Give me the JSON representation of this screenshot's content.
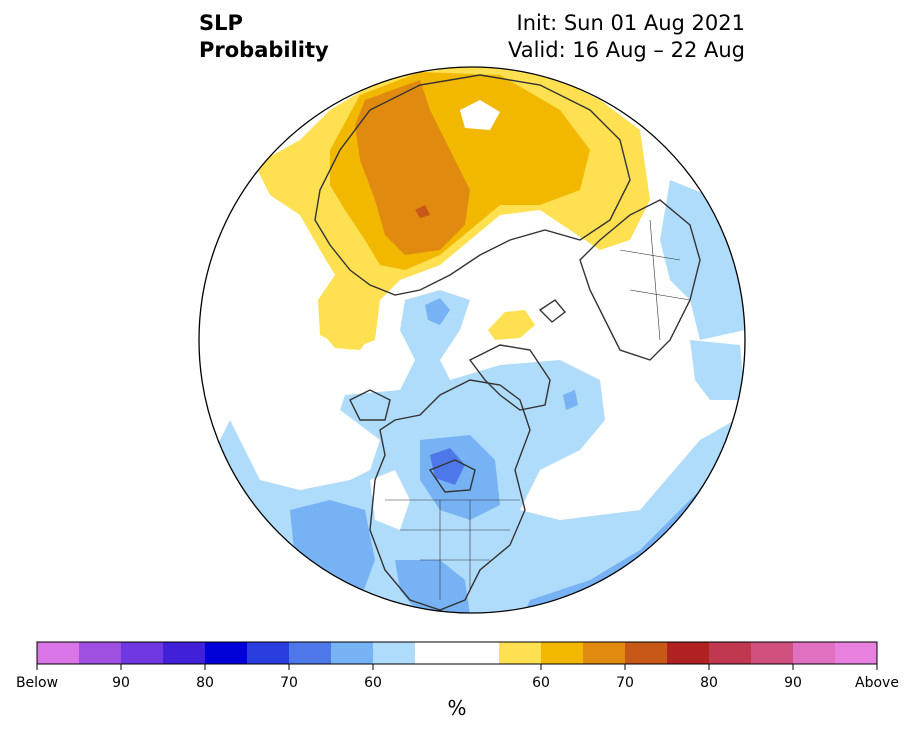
{
  "header": {
    "title_line1": "SLP",
    "title_line2": "Probability",
    "init": "Init: Sun 01 Aug 2021",
    "valid": "Valid: 16 Aug – 22 Aug"
  },
  "legend": {
    "unit": "%",
    "colors": [
      "#d975e6",
      "#a050e0",
      "#7038e0",
      "#4020d8",
      "#0000d8",
      "#2a3ee0",
      "#4e78ea",
      "#76b2f4",
      "#b0dcfc",
      "#ffffff",
      "#ffffff",
      "#ffe050",
      "#f2b800",
      "#e08a10",
      "#c85818",
      "#b02222",
      "#c03850",
      "#d05080",
      "#e070c0",
      "#e880e0"
    ],
    "tick_labels": [
      "Below",
      "90",
      "80",
      "70",
      "60",
      "60",
      "70",
      "80",
      "90",
      "Above"
    ]
  },
  "colors": {
    "land_outline": "#333333",
    "blue_light": "#b0dcfc",
    "blue_mid": "#76b2f4",
    "blue_dark": "#4e78ea",
    "yellow": "#ffe050",
    "gold": "#f2b800",
    "orange": "#e08a10",
    "dark_orange": "#c85818"
  }
}
